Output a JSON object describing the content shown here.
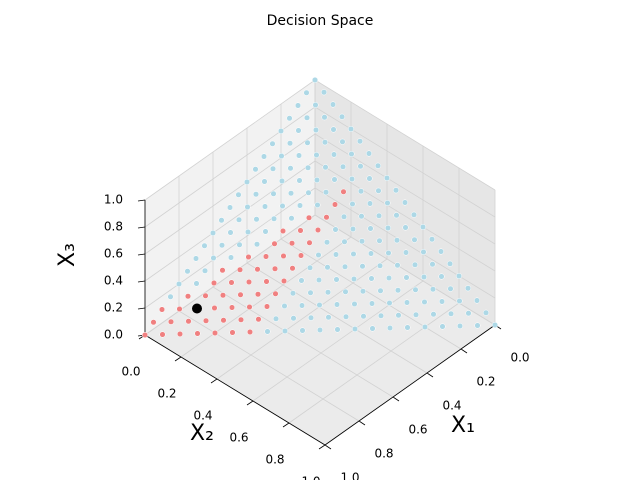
{
  "chart_data": {
    "type": "scatter3d",
    "title": "Decision Space",
    "xlabel": "X₁",
    "ylabel": "X₂",
    "zlabel": "X₃",
    "xlim": [
      0,
      1
    ],
    "ylim": [
      0,
      1
    ],
    "zlim": [
      0,
      1
    ],
    "xticks": [
      {
        "value": 0,
        "label": "0.0"
      },
      {
        "value": 0.2,
        "label": "0.2"
      },
      {
        "value": 0.4,
        "label": "0.4"
      },
      {
        "value": 0.6,
        "label": "0.6"
      },
      {
        "value": 0.8,
        "label": "0.8"
      },
      {
        "value": 1,
        "label": "1.0"
      }
    ],
    "yticks": [
      {
        "value": 0,
        "label": "0.0"
      },
      {
        "value": 0.2,
        "label": "0.2"
      },
      {
        "value": 0.4,
        "label": "0.4"
      },
      {
        "value": 0.6,
        "label": "0.6"
      },
      {
        "value": 0.8,
        "label": "0.8"
      },
      {
        "value": 1,
        "label": "1.0"
      }
    ],
    "zticks": [
      {
        "value": 0,
        "label": "0.0"
      },
      {
        "value": 0.2,
        "label": "0.2"
      },
      {
        "value": 0.4,
        "label": "0.4"
      },
      {
        "value": 0.6,
        "label": "0.6"
      },
      {
        "value": 0.8,
        "label": "0.8"
      },
      {
        "value": 1,
        "label": "1.0"
      }
    ],
    "grid": true,
    "series": [
      {
        "color": "#add8e6",
        "x": [
          0.85,
          0.8,
          0.75,
          0.7,
          0.65,
          0.6,
          0.55,
          0.5,
          0.45,
          0.4,
          0.35,
          0.3,
          0.25,
          0.2,
          0.15,
          0.1,
          0.05,
          0,
          0.75,
          0.7,
          0.65,
          0.6,
          0.55,
          0.5,
          0.45,
          0.4,
          0.35,
          0.3,
          0.25,
          0.2,
          0.15,
          0.1,
          0.05,
          0,
          0.6,
          0.55,
          0.5,
          0.45,
          0.4,
          0.35,
          0.3,
          0.25,
          0.2,
          0.15,
          0.1,
          0.05,
          0,
          0.5,
          0.45,
          0.4,
          0.35,
          0.3,
          0.25,
          0.2,
          0.15,
          0.1,
          0.05,
          0,
          0.35,
          0.3,
          0.25,
          0.2,
          0.15,
          0.1,
          0.05,
          0,
          0.25,
          0.2,
          0.15,
          0.1,
          0.05,
          0,
          0.1,
          0.05,
          0,
          0.65,
          0.6,
          0.55,
          0.5,
          0.45,
          0.4,
          0.35,
          0.3,
          0.25,
          0.2,
          0.15,
          0.1,
          0.05,
          0,
          0.6,
          0.55,
          0.5,
          0.45,
          0.4,
          0.35,
          0.3,
          0.25,
          0.2,
          0.15,
          0.1,
          0.05,
          0,
          0.55,
          0.5,
          0.45,
          0.4,
          0.35,
          0.3,
          0.25,
          0.2,
          0.15,
          0.1,
          0.05,
          0,
          0.5,
          0.45,
          0.4,
          0.35,
          0.3,
          0.25,
          0.2,
          0.15,
          0.1,
          0.05,
          0,
          0.45,
          0.4,
          0.35,
          0.3,
          0.25,
          0.2,
          0.15,
          0.1,
          0.05,
          0,
          0.4,
          0.35,
          0.3,
          0.25,
          0.2,
          0.15,
          0.1,
          0.05,
          0,
          0.35,
          0.3,
          0.25,
          0.2,
          0.15,
          0.1,
          0.05,
          0,
          0.3,
          0.25,
          0.2,
          0.15,
          0.1,
          0.05,
          0,
          0.25,
          0.2,
          0.15,
          0.1,
          0.05,
          0,
          0.2,
          0.15,
          0.1,
          0.05,
          0,
          0.15,
          0.1,
          0.05,
          0,
          0.1,
          0.05,
          0,
          0.05,
          0,
          0
        ],
        "y": [
          0,
          0,
          0,
          0,
          0,
          0,
          0,
          0,
          0,
          0,
          0,
          0,
          0,
          0,
          0,
          0,
          0,
          0,
          0.05,
          0.05,
          0.05,
          0.05,
          0.05,
          0.05,
          0.05,
          0.05,
          0.05,
          0.05,
          0.05,
          0.05,
          0.05,
          0.05,
          0.05,
          0.05,
          0.1,
          0.1,
          0.1,
          0.1,
          0.1,
          0.1,
          0.1,
          0.1,
          0.1,
          0.1,
          0.1,
          0.1,
          0.1,
          0.15,
          0.15,
          0.15,
          0.15,
          0.15,
          0.15,
          0.15,
          0.15,
          0.15,
          0.15,
          0.15,
          0.2,
          0.2,
          0.2,
          0.2,
          0.2,
          0.2,
          0.2,
          0.2,
          0.25,
          0.25,
          0.25,
          0.25,
          0.25,
          0.25,
          0.3,
          0.3,
          0.3,
          0.35,
          0.35,
          0.35,
          0.35,
          0.35,
          0.35,
          0.35,
          0.35,
          0.35,
          0.35,
          0.35,
          0.35,
          0.35,
          0.35,
          0.4,
          0.4,
          0.4,
          0.4,
          0.4,
          0.4,
          0.4,
          0.4,
          0.4,
          0.4,
          0.4,
          0.4,
          0.4,
          0.45,
          0.45,
          0.45,
          0.45,
          0.45,
          0.45,
          0.45,
          0.45,
          0.45,
          0.45,
          0.45,
          0.45,
          0.5,
          0.5,
          0.5,
          0.5,
          0.5,
          0.5,
          0.5,
          0.5,
          0.5,
          0.5,
          0.5,
          0.55,
          0.55,
          0.55,
          0.55,
          0.55,
          0.55,
          0.55,
          0.55,
          0.55,
          0.55,
          0.6,
          0.6,
          0.6,
          0.6,
          0.6,
          0.6,
          0.6,
          0.6,
          0.6,
          0.65,
          0.65,
          0.65,
          0.65,
          0.65,
          0.65,
          0.65,
          0.65,
          0.7,
          0.7,
          0.7,
          0.7,
          0.7,
          0.7,
          0.7,
          0.75,
          0.75,
          0.75,
          0.75,
          0.75,
          0.75,
          0.8,
          0.8,
          0.8,
          0.8,
          0.8,
          0.85,
          0.85,
          0.85,
          0.85,
          0.9,
          0.9,
          0.9,
          0.95,
          0.95,
          1
        ],
        "z": [
          0.15,
          0.2,
          0.25,
          0.3,
          0.35,
          0.4,
          0.45,
          0.5,
          0.55,
          0.6,
          0.65,
          0.7,
          0.75,
          0.8,
          0.85,
          0.9,
          0.95,
          1,
          0.2,
          0.25,
          0.3,
          0.35,
          0.4,
          0.45,
          0.5,
          0.55,
          0.6,
          0.65,
          0.7,
          0.75,
          0.8,
          0.85,
          0.9,
          0.95,
          0.3,
          0.35,
          0.4,
          0.45,
          0.5,
          0.55,
          0.6,
          0.65,
          0.7,
          0.75,
          0.8,
          0.85,
          0.9,
          0.35,
          0.4,
          0.45,
          0.5,
          0.55,
          0.6,
          0.65,
          0.7,
          0.75,
          0.8,
          0.85,
          0.45,
          0.5,
          0.55,
          0.6,
          0.65,
          0.7,
          0.75,
          0.8,
          0.5,
          0.55,
          0.6,
          0.65,
          0.7,
          0.75,
          0.6,
          0.65,
          0.7,
          0,
          0.05,
          0.1,
          0.15,
          0.2,
          0.25,
          0.3,
          0.35,
          0.4,
          0.45,
          0.5,
          0.55,
          0.6,
          0.65,
          0,
          0.05,
          0.1,
          0.15,
          0.2,
          0.25,
          0.3,
          0.35,
          0.4,
          0.45,
          0.5,
          0.55,
          0.6,
          0,
          0.05,
          0.1,
          0.15,
          0.2,
          0.25,
          0.3,
          0.35,
          0.4,
          0.45,
          0.5,
          0.55,
          0,
          0.05,
          0.1,
          0.15,
          0.2,
          0.25,
          0.3,
          0.35,
          0.4,
          0.45,
          0.5,
          0,
          0.05,
          0.1,
          0.15,
          0.2,
          0.25,
          0.3,
          0.35,
          0.4,
          0.45,
          0,
          0.05,
          0.1,
          0.15,
          0.2,
          0.25,
          0.3,
          0.35,
          0.4,
          0,
          0.05,
          0.1,
          0.15,
          0.2,
          0.25,
          0.3,
          0.35,
          0,
          0.05,
          0.1,
          0.15,
          0.2,
          0.25,
          0.3,
          0,
          0.05,
          0.1,
          0.15,
          0.2,
          0.25,
          0,
          0.05,
          0.1,
          0.15,
          0.2,
          0,
          0.05,
          0.1,
          0.15,
          0,
          0.05,
          0.1,
          0,
          0.05,
          0
        ]
      },
      {
        "color": "#f08080",
        "x": [
          1,
          0.95,
          0.9,
          0.95,
          0.9,
          0.85,
          0.8,
          0.9,
          0.85,
          0.8,
          0.75,
          0.7,
          0.65,
          0.85,
          0.8,
          0.75,
          0.7,
          0.65,
          0.6,
          0.55,
          0.8,
          0.75,
          0.7,
          0.65,
          0.6,
          0.55,
          0.5,
          0.45,
          0.4,
          0.75,
          0.7,
          0.65,
          0.6,
          0.55,
          0.5,
          0.45,
          0.4,
          0.35,
          0.3,
          0.7,
          0.65,
          0.6,
          0.55,
          0.5,
          0.45,
          0.4,
          0.35,
          0.3,
          0.25,
          0.2,
          0.15
        ],
        "y": [
          0,
          0,
          0,
          0.05,
          0.05,
          0.05,
          0.05,
          0.1,
          0.1,
          0.1,
          0.1,
          0.1,
          0.1,
          0.15,
          0.15,
          0.15,
          0.15,
          0.15,
          0.15,
          0.15,
          0.2,
          0.2,
          0.2,
          0.2,
          0.2,
          0.2,
          0.2,
          0.2,
          0.2,
          0.25,
          0.25,
          0.25,
          0.25,
          0.25,
          0.25,
          0.25,
          0.25,
          0.25,
          0.25,
          0.3,
          0.3,
          0.3,
          0.3,
          0.3,
          0.3,
          0.3,
          0.3,
          0.3,
          0.3,
          0.3,
          0.3
        ],
        "z": [
          0,
          0.05,
          0.1,
          0,
          0.05,
          0.1,
          0.15,
          0,
          0.05,
          0.1,
          0.15,
          0.2,
          0.25,
          0,
          0.05,
          0.1,
          0.15,
          0.2,
          0.25,
          0.3,
          0,
          0.05,
          0.1,
          0.15,
          0.2,
          0.25,
          0.3,
          0.35,
          0.4,
          0,
          0.05,
          0.1,
          0.15,
          0.2,
          0.25,
          0.3,
          0.35,
          0.4,
          0.45,
          0,
          0.05,
          0.1,
          0.15,
          0.2,
          0.25,
          0.3,
          0.35,
          0.4,
          0.45,
          0.5,
          0.55
        ]
      },
      {
        "color": "#000000",
        "x": [
          0.8
        ],
        "y": [
          0.1
        ],
        "z": [
          0.1
        ]
      }
    ]
  }
}
